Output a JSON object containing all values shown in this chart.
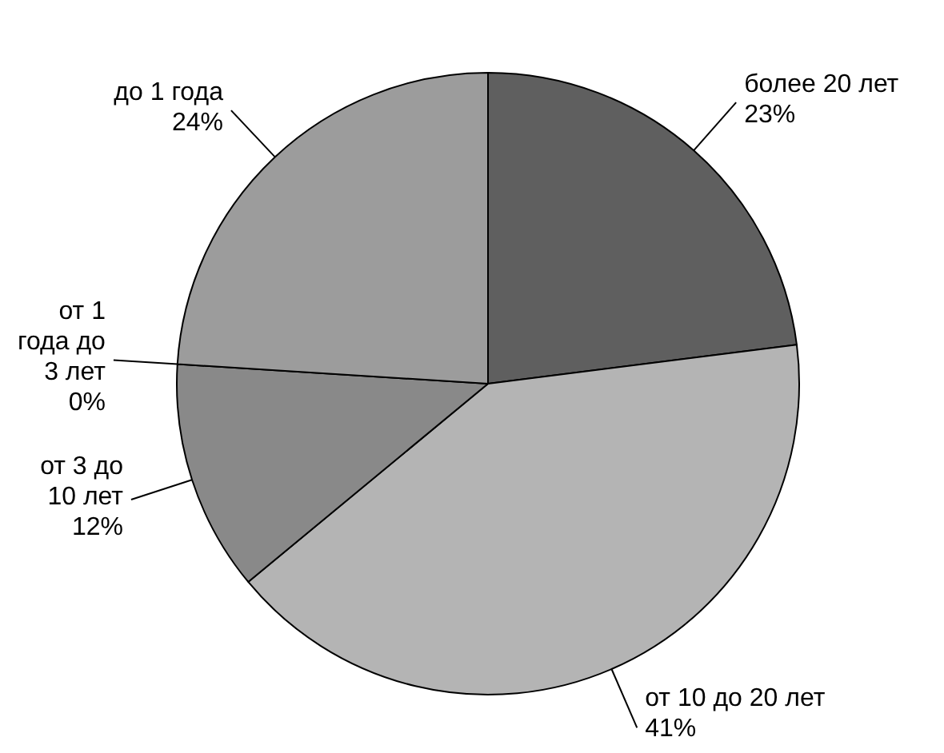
{
  "chart_data": {
    "type": "pie",
    "categories": [
      "более 20 лет",
      "от 10 до 20 лет",
      "от 3 до 10 лет",
      "от 1 года до 3 лет",
      "до 1 года"
    ],
    "values": [
      23,
      41,
      12,
      0,
      24
    ],
    "value_labels": [
      "23%",
      "41%",
      "12%",
      "0%",
      "24%"
    ],
    "colors": [
      "#5f5f5f",
      "#b4b4b4",
      "#898989",
      "#c8c8c8",
      "#9c9c9c"
    ],
    "legend": false
  }
}
